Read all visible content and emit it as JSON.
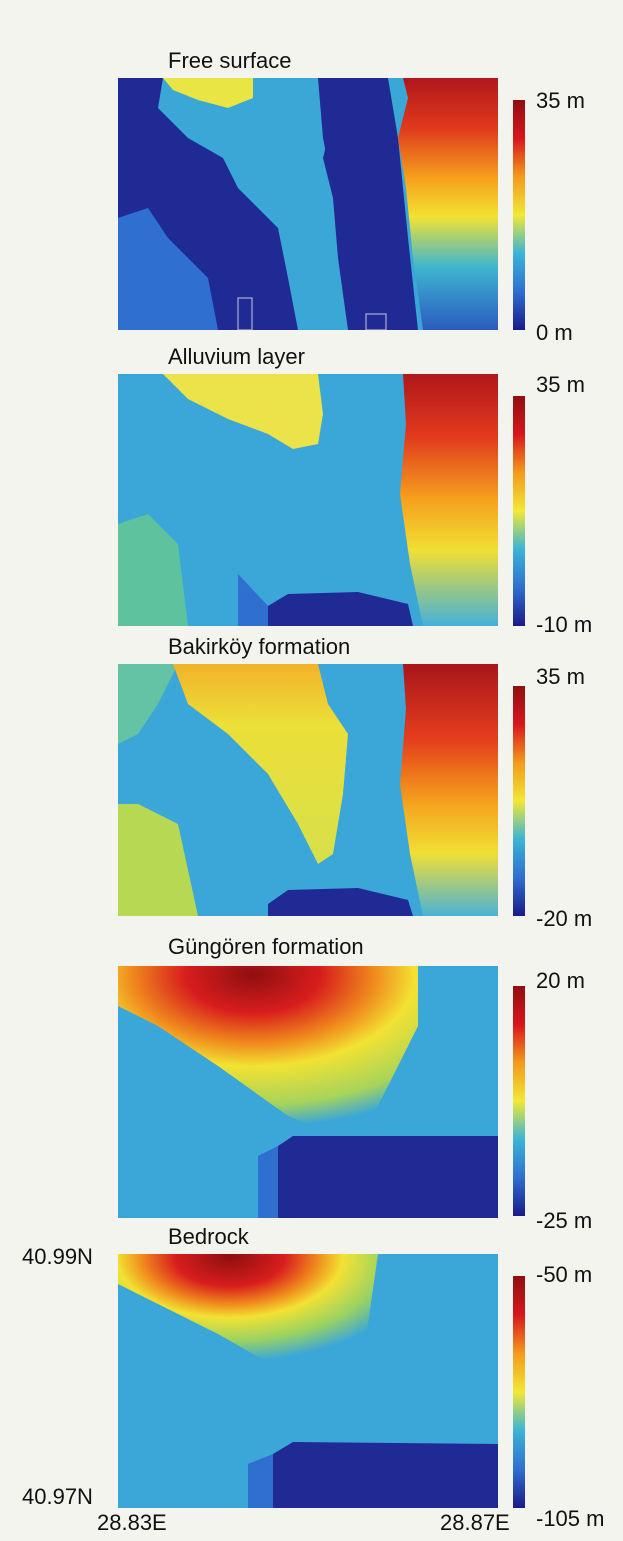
{
  "chart_data": [
    {
      "type": "heatmap",
      "title": "Free surface",
      "colorbar": {
        "max_label": "35 m",
        "min_label": "0 m",
        "vmax": 35,
        "vmin": 0
      },
      "colormap": [
        "#1a1a8a",
        "#2e6fd0",
        "#3bb4d6",
        "#f1e834",
        "#f39a1c",
        "#d8161d",
        "#8f0f10"
      ]
    },
    {
      "type": "heatmap",
      "title": "Alluvium layer",
      "colorbar": {
        "max_label": "35 m",
        "min_label": "-10 m",
        "vmax": 35,
        "vmin": -10
      },
      "colormap": [
        "#1a1a8a",
        "#2e6fd0",
        "#3bb4d6",
        "#f1e834",
        "#f39a1c",
        "#d8161d",
        "#8f0f10"
      ]
    },
    {
      "type": "heatmap",
      "title": "Bakirköy formation",
      "colorbar": {
        "max_label": "35 m",
        "min_label": "-20 m",
        "vmax": 35,
        "vmin": -20
      },
      "colormap": [
        "#1a1a8a",
        "#2e6fd0",
        "#3bb4d6",
        "#f1e834",
        "#f39a1c",
        "#d8161d",
        "#8f0f10"
      ]
    },
    {
      "type": "heatmap",
      "title": "Güngören formation",
      "colorbar": {
        "max_label": "20 m",
        "min_label": "-25 m",
        "vmax": 20,
        "vmin": -25
      },
      "colormap": [
        "#1a1a8a",
        "#2e6fd0",
        "#3bb4d6",
        "#f1e834",
        "#f39a1c",
        "#d8161d",
        "#8f0f10"
      ]
    },
    {
      "type": "heatmap",
      "title": "Bedrock",
      "colorbar": {
        "max_label": "-50 m",
        "min_label": "-105 m",
        "vmax": -50,
        "vmin": -105
      },
      "colormap": [
        "#1a1a8a",
        "#2e6fd0",
        "#3bb4d6",
        "#f1e834",
        "#f39a1c",
        "#d8161d",
        "#8f0f10"
      ]
    }
  ],
  "axes": {
    "lat_top": "40.99N",
    "lat_bottom": "40.97N",
    "lon_left": "28.83E",
    "lon_right": "28.87E"
  }
}
